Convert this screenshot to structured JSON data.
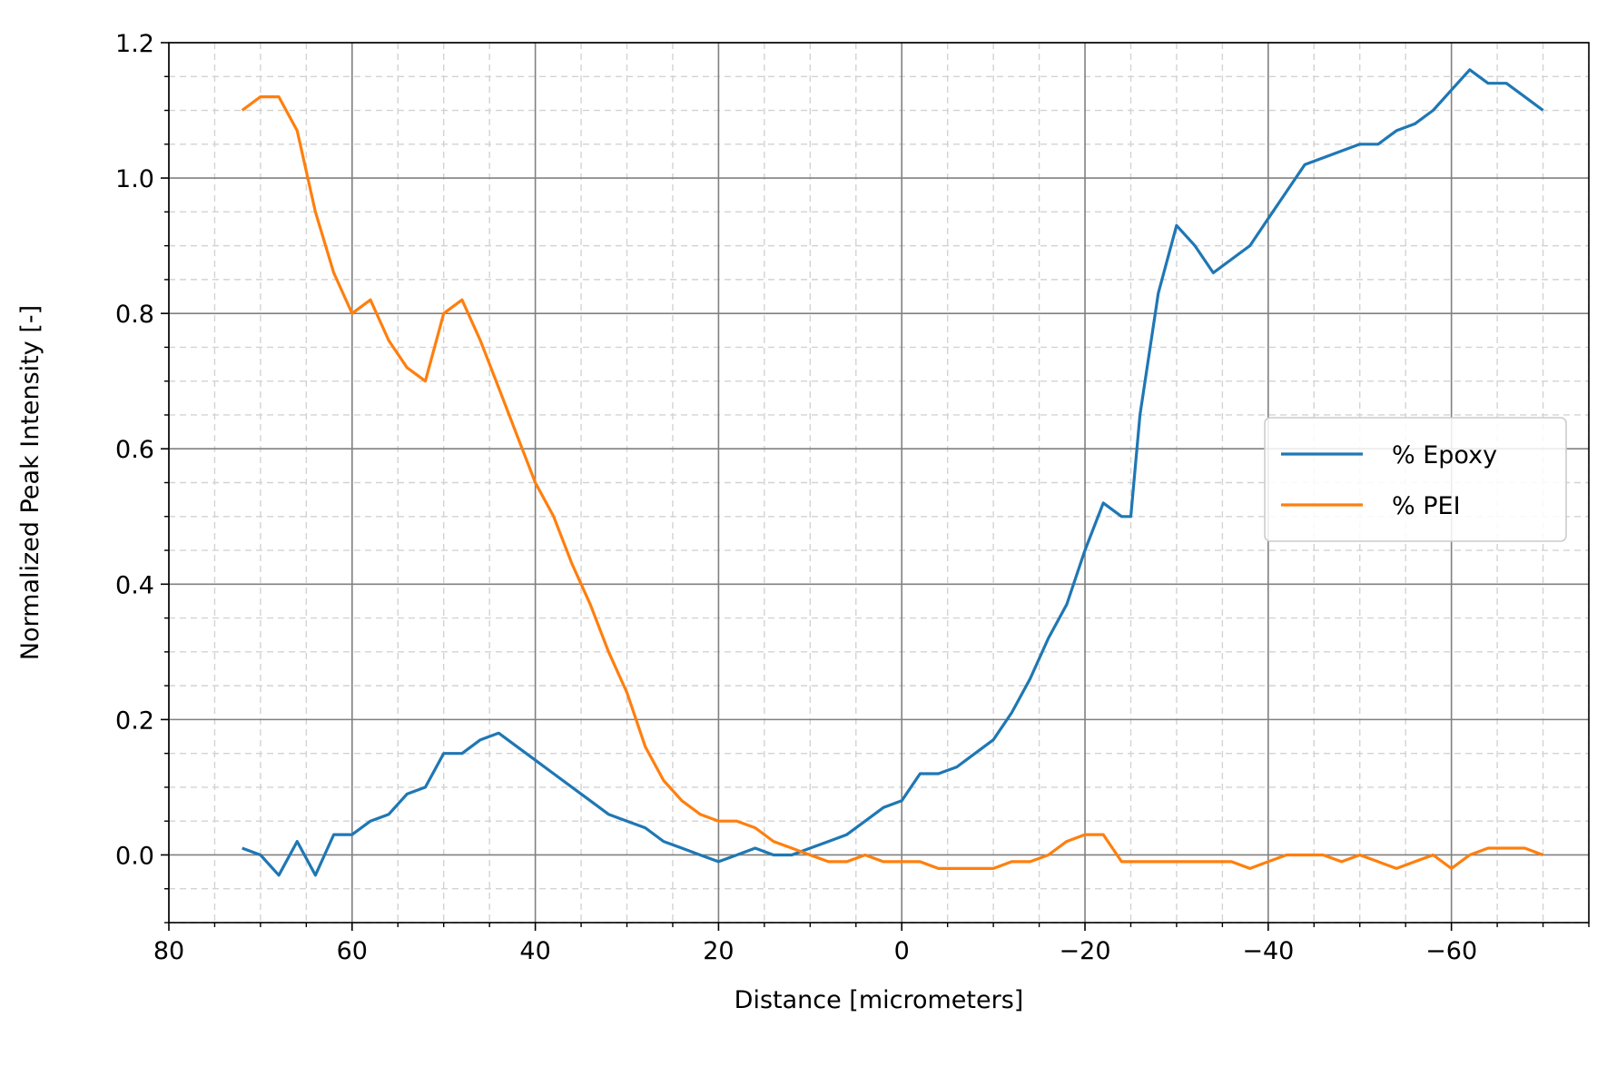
{
  "chart_data": {
    "type": "line",
    "title": "",
    "xlabel": "Distance [micrometers]",
    "ylabel": "Normalized Peak Intensity [-]",
    "xlim": [
      80,
      -75
    ],
    "ylim": [
      -0.1,
      1.2
    ],
    "x_inverted": true,
    "grid": {
      "major": true,
      "minor": true,
      "major_style": "solid",
      "minor_style": "dashed"
    },
    "x_ticks": [
      80,
      60,
      40,
      20,
      0,
      -20,
      -40,
      -60
    ],
    "x_tick_labels": [
      "80",
      "60",
      "40",
      "20",
      "0",
      "−20",
      "−40",
      "−60"
    ],
    "y_ticks": [
      0.0,
      0.2,
      0.4,
      0.6,
      0.8,
      1.0,
      1.2
    ],
    "y_tick_labels": [
      "0.0",
      "0.2",
      "0.4",
      "0.6",
      "0.8",
      "1.0",
      "1.2"
    ],
    "legend": {
      "placement": "center-right"
    },
    "series": [
      {
        "name": "% Epoxy",
        "color": "#1f77b4",
        "x": [
          72,
          70,
          68,
          66,
          64,
          62,
          60,
          58,
          56,
          54,
          52,
          50,
          48,
          46,
          44,
          42,
          40,
          38,
          36,
          34,
          32,
          30,
          28,
          26,
          24,
          22,
          20,
          18,
          16,
          14,
          12,
          10,
          8,
          6,
          4,
          2,
          0,
          -2,
          -4,
          -6,
          -8,
          -10,
          -12,
          -14,
          -16,
          -18,
          -20,
          -22,
          -24,
          -25,
          -26,
          -28,
          -30,
          -32,
          -34,
          -36,
          -38,
          -40,
          -42,
          -44,
          -46,
          -48,
          -50,
          -52,
          -54,
          -56,
          -58,
          -60,
          -62,
          -64,
          -66,
          -68,
          -70
        ],
        "y": [
          0.01,
          0.0,
          -0.03,
          0.02,
          -0.03,
          0.03,
          0.03,
          0.05,
          0.06,
          0.09,
          0.1,
          0.15,
          0.15,
          0.17,
          0.18,
          0.16,
          0.14,
          0.12,
          0.1,
          0.08,
          0.06,
          0.05,
          0.04,
          0.02,
          0.01,
          0.0,
          -0.01,
          0.0,
          0.01,
          0.0,
          0.0,
          0.01,
          0.02,
          0.03,
          0.05,
          0.07,
          0.08,
          0.12,
          0.12,
          0.13,
          0.15,
          0.17,
          0.21,
          0.26,
          0.32,
          0.37,
          0.45,
          0.52,
          0.5,
          0.5,
          0.65,
          0.83,
          0.93,
          0.9,
          0.86,
          0.88,
          0.9,
          0.94,
          0.98,
          1.02,
          1.03,
          1.04,
          1.05,
          1.05,
          1.07,
          1.08,
          1.1,
          1.13,
          1.16,
          1.14,
          1.14,
          1.12,
          1.1
        ]
      },
      {
        "name": "% PEI",
        "color": "#ff7f0e",
        "x": [
          72,
          70,
          68,
          66,
          64,
          62,
          60,
          58,
          56,
          54,
          52,
          50,
          48,
          46,
          44,
          42,
          40,
          38,
          36,
          34,
          32,
          30,
          28,
          26,
          24,
          22,
          20,
          18,
          16,
          14,
          12,
          10,
          8,
          6,
          4,
          2,
          0,
          -2,
          -4,
          -6,
          -8,
          -10,
          -12,
          -14,
          -16,
          -18,
          -20,
          -22,
          -24,
          -26,
          -28,
          -30,
          -32,
          -34,
          -36,
          -38,
          -40,
          -42,
          -44,
          -46,
          -48,
          -50,
          -52,
          -54,
          -56,
          -58,
          -60,
          -62,
          -64,
          -66,
          -68,
          -70
        ],
        "y": [
          1.1,
          1.12,
          1.12,
          1.07,
          0.95,
          0.86,
          0.8,
          0.82,
          0.76,
          0.72,
          0.7,
          0.8,
          0.82,
          0.76,
          0.69,
          0.62,
          0.55,
          0.5,
          0.43,
          0.37,
          0.3,
          0.24,
          0.16,
          0.11,
          0.08,
          0.06,
          0.05,
          0.05,
          0.04,
          0.02,
          0.01,
          0.0,
          -0.01,
          -0.01,
          0.0,
          -0.01,
          -0.01,
          -0.01,
          -0.02,
          -0.02,
          -0.02,
          -0.02,
          -0.01,
          -0.01,
          0.0,
          0.02,
          0.03,
          0.03,
          -0.01,
          -0.01,
          -0.01,
          -0.01,
          -0.01,
          -0.01,
          -0.01,
          -0.02,
          -0.01,
          0.0,
          0.0,
          0.0,
          -0.01,
          0.0,
          -0.01,
          -0.02,
          -0.01,
          0.0,
          -0.02,
          0.0,
          0.01,
          0.01,
          0.01,
          0.0
        ]
      }
    ]
  }
}
